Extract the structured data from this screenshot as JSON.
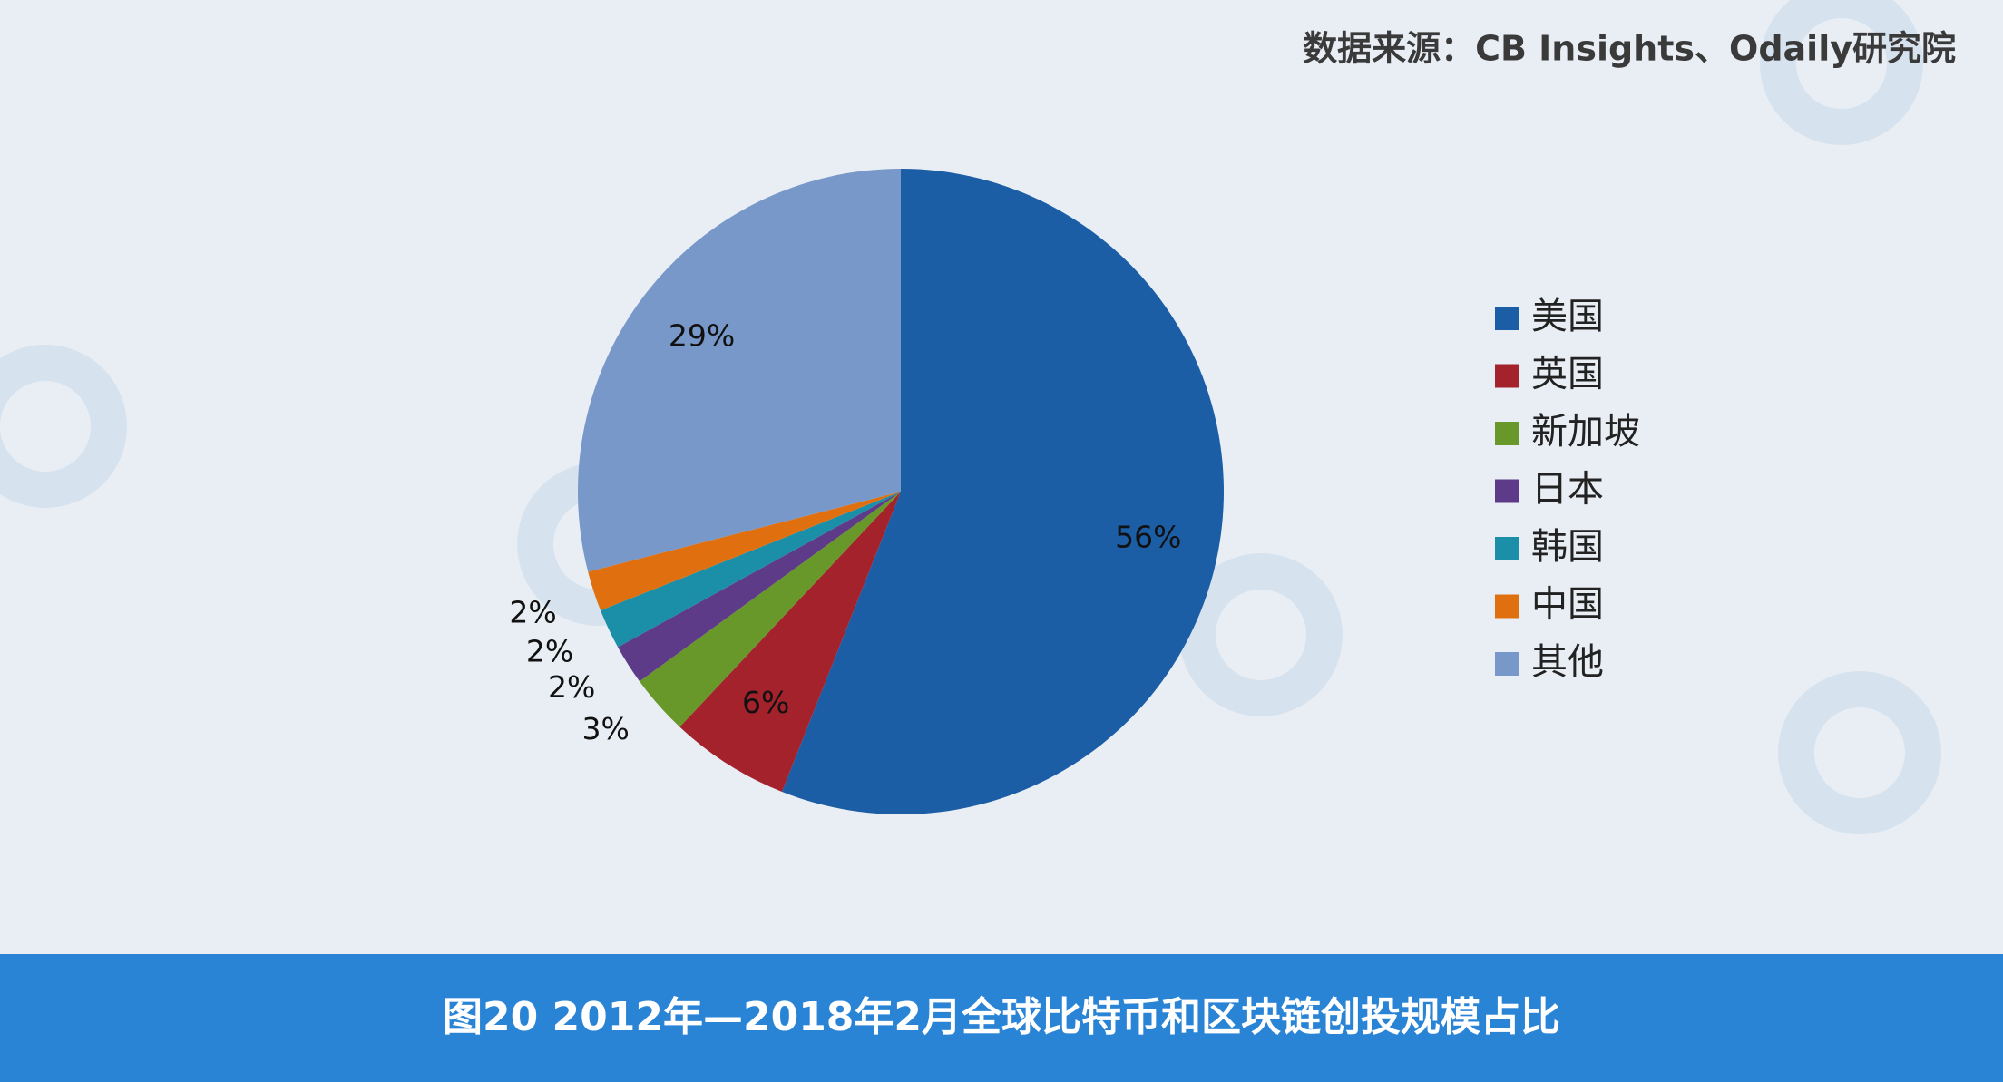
{
  "chart_data": {
    "type": "pie",
    "title": "图20  2012年—2018年2月全球比特币和区块链创投规模占比",
    "source": "数据来源：CB Insights、Odaily研究院",
    "categories": [
      "美国",
      "英国",
      "新加坡",
      "日本",
      "韩国",
      "中国",
      "其他"
    ],
    "values": [
      56,
      6,
      3,
      2,
      2,
      2,
      29
    ],
    "value_labels": [
      "56%",
      "6%",
      "3%",
      "2%",
      "2%",
      "2%",
      "29%"
    ],
    "colors": [
      "#1c5ea6",
      "#a3222b",
      "#68982a",
      "#5d3b88",
      "#1b8ea8",
      "#e0700f",
      "#7898c9"
    ],
    "legend": "right"
  }
}
